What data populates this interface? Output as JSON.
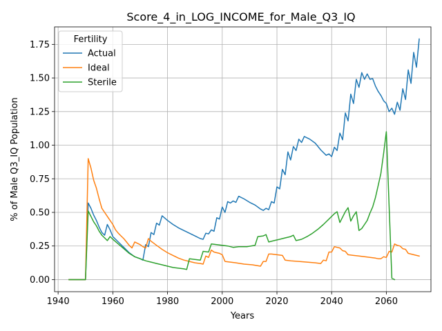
{
  "chart_data": {
    "type": "line",
    "title": "Score_4_in_LOG_INCOME_for_Male_Q3_IQ",
    "xlabel": "Years",
    "ylabel": "% of Male Q3_IQ Population",
    "xlim": [
      1938.7,
      2076.3
    ],
    "ylim": [
      -0.09,
      1.88
    ],
    "x_ticks": [
      1940,
      1960,
      1980,
      2000,
      2020,
      2040,
      2060
    ],
    "y_ticks": [
      0.0,
      0.25,
      0.5,
      0.75,
      1.0,
      1.25,
      1.5,
      1.75
    ],
    "y_tick_labels": [
      "0.00",
      "0.25",
      "0.50",
      "0.75",
      "1.00",
      "1.25",
      "1.50",
      "1.75"
    ],
    "grid": true,
    "legend": {
      "title": "Fertility",
      "position": "top-left"
    },
    "series": [
      {
        "name": "Actual",
        "color": "#1f77b4",
        "points": [
          [
            1944,
            0.0
          ],
          [
            1948,
            0.0
          ],
          [
            1950,
            0.0
          ],
          [
            1951,
            0.57
          ],
          [
            1952,
            0.53
          ],
          [
            1953,
            0.48
          ],
          [
            1954,
            0.44
          ],
          [
            1955,
            0.39
          ],
          [
            1956,
            0.35
          ],
          [
            1957,
            0.33
          ],
          [
            1958,
            0.41
          ],
          [
            1959,
            0.37
          ],
          [
            1960,
            0.32
          ],
          [
            1962,
            0.28
          ],
          [
            1964,
            0.24
          ],
          [
            1966,
            0.2
          ],
          [
            1968,
            0.17
          ],
          [
            1970,
            0.155
          ],
          [
            1971,
            0.145
          ],
          [
            1972,
            0.26
          ],
          [
            1973,
            0.245
          ],
          [
            1974,
            0.35
          ],
          [
            1975,
            0.335
          ],
          [
            1976,
            0.42
          ],
          [
            1977,
            0.405
          ],
          [
            1978,
            0.475
          ],
          [
            1980,
            0.44
          ],
          [
            1982,
            0.41
          ],
          [
            1984,
            0.385
          ],
          [
            1986,
            0.365
          ],
          [
            1988,
            0.345
          ],
          [
            1990,
            0.325
          ],
          [
            1992,
            0.305
          ],
          [
            1993,
            0.3
          ],
          [
            1994,
            0.345
          ],
          [
            1995,
            0.34
          ],
          [
            1996,
            0.37
          ],
          [
            1997,
            0.36
          ],
          [
            1998,
            0.46
          ],
          [
            1999,
            0.45
          ],
          [
            2000,
            0.54
          ],
          [
            2001,
            0.5
          ],
          [
            2002,
            0.58
          ],
          [
            2003,
            0.57
          ],
          [
            2004,
            0.585
          ],
          [
            2005,
            0.575
          ],
          [
            2006,
            0.62
          ],
          [
            2008,
            0.6
          ],
          [
            2010,
            0.575
          ],
          [
            2012,
            0.555
          ],
          [
            2014,
            0.525
          ],
          [
            2015,
            0.515
          ],
          [
            2016,
            0.53
          ],
          [
            2017,
            0.52
          ],
          [
            2018,
            0.58
          ],
          [
            2019,
            0.57
          ],
          [
            2020,
            0.69
          ],
          [
            2021,
            0.675
          ],
          [
            2022,
            0.82
          ],
          [
            2023,
            0.78
          ],
          [
            2024,
            0.95
          ],
          [
            2025,
            0.89
          ],
          [
            2026,
            0.99
          ],
          [
            2027,
            0.96
          ],
          [
            2028,
            1.045
          ],
          [
            2029,
            1.02
          ],
          [
            2030,
            1.065
          ],
          [
            2032,
            1.045
          ],
          [
            2034,
            1.015
          ],
          [
            2036,
            0.965
          ],
          [
            2038,
            0.925
          ],
          [
            2039,
            0.935
          ],
          [
            2040,
            0.915
          ],
          [
            2041,
            0.985
          ],
          [
            2042,
            0.96
          ],
          [
            2043,
            1.09
          ],
          [
            2044,
            1.04
          ],
          [
            2045,
            1.24
          ],
          [
            2046,
            1.18
          ],
          [
            2047,
            1.38
          ],
          [
            2048,
            1.31
          ],
          [
            2049,
            1.49
          ],
          [
            2050,
            1.43
          ],
          [
            2051,
            1.54
          ],
          [
            2052,
            1.49
          ],
          [
            2053,
            1.53
          ],
          [
            2054,
            1.49
          ],
          [
            2055,
            1.495
          ],
          [
            2056,
            1.44
          ],
          [
            2057,
            1.4
          ],
          [
            2058,
            1.37
          ],
          [
            2059,
            1.33
          ],
          [
            2060,
            1.31
          ],
          [
            2061,
            1.25
          ],
          [
            2062,
            1.275
          ],
          [
            2063,
            1.23
          ],
          [
            2064,
            1.32
          ],
          [
            2065,
            1.26
          ],
          [
            2066,
            1.42
          ],
          [
            2067,
            1.34
          ],
          [
            2068,
            1.56
          ],
          [
            2069,
            1.46
          ],
          [
            2070,
            1.69
          ],
          [
            2071,
            1.58
          ],
          [
            2072,
            1.79
          ]
        ]
      },
      {
        "name": "Ideal",
        "color": "#ff7f0e",
        "points": [
          [
            1944,
            0.0
          ],
          [
            1948,
            0.0
          ],
          [
            1950,
            0.0
          ],
          [
            1951,
            0.9
          ],
          [
            1952,
            0.83
          ],
          [
            1953,
            0.74
          ],
          [
            1954,
            0.68
          ],
          [
            1955,
            0.6
          ],
          [
            1956,
            0.53
          ],
          [
            1957,
            0.5
          ],
          [
            1958,
            0.47
          ],
          [
            1959,
            0.44
          ],
          [
            1960,
            0.41
          ],
          [
            1961,
            0.37
          ],
          [
            1962,
            0.345
          ],
          [
            1963,
            0.325
          ],
          [
            1964,
            0.305
          ],
          [
            1965,
            0.28
          ],
          [
            1966,
            0.255
          ],
          [
            1967,
            0.235
          ],
          [
            1968,
            0.28
          ],
          [
            1969,
            0.27
          ],
          [
            1970,
            0.26
          ],
          [
            1971,
            0.245
          ],
          [
            1972,
            0.235
          ],
          [
            1973,
            0.305
          ],
          [
            1974,
            0.285
          ],
          [
            1975,
            0.27
          ],
          [
            1976,
            0.255
          ],
          [
            1977,
            0.24
          ],
          [
            1978,
            0.225
          ],
          [
            1980,
            0.2
          ],
          [
            1982,
            0.18
          ],
          [
            1984,
            0.16
          ],
          [
            1986,
            0.145
          ],
          [
            1988,
            0.135
          ],
          [
            1990,
            0.125
          ],
          [
            1992,
            0.12
          ],
          [
            1993,
            0.115
          ],
          [
            1994,
            0.175
          ],
          [
            1995,
            0.165
          ],
          [
            1996,
            0.22
          ],
          [
            1997,
            0.205
          ],
          [
            1998,
            0.2
          ],
          [
            1999,
            0.195
          ],
          [
            2000,
            0.185
          ],
          [
            2001,
            0.135
          ],
          [
            2003,
            0.13
          ],
          [
            2005,
            0.125
          ],
          [
            2008,
            0.115
          ],
          [
            2011,
            0.11
          ],
          [
            2014,
            0.1
          ],
          [
            2015,
            0.135
          ],
          [
            2016,
            0.135
          ],
          [
            2017,
            0.19
          ],
          [
            2018,
            0.19
          ],
          [
            2020,
            0.185
          ],
          [
            2022,
            0.18
          ],
          [
            2023,
            0.145
          ],
          [
            2025,
            0.14
          ],
          [
            2028,
            0.135
          ],
          [
            2031,
            0.13
          ],
          [
            2034,
            0.125
          ],
          [
            2036,
            0.12
          ],
          [
            2037,
            0.145
          ],
          [
            2038,
            0.14
          ],
          [
            2039,
            0.205
          ],
          [
            2040,
            0.205
          ],
          [
            2041,
            0.245
          ],
          [
            2042,
            0.24
          ],
          [
            2043,
            0.235
          ],
          [
            2044,
            0.215
          ],
          [
            2045,
            0.21
          ],
          [
            2046,
            0.185
          ],
          [
            2048,
            0.18
          ],
          [
            2050,
            0.175
          ],
          [
            2052,
            0.17
          ],
          [
            2054,
            0.165
          ],
          [
            2056,
            0.16
          ],
          [
            2057,
            0.155
          ],
          [
            2058,
            0.155
          ],
          [
            2059,
            0.17
          ],
          [
            2060,
            0.165
          ],
          [
            2061,
            0.21
          ],
          [
            2062,
            0.205
          ],
          [
            2063,
            0.265
          ],
          [
            2064,
            0.255
          ],
          [
            2065,
            0.25
          ],
          [
            2066,
            0.23
          ],
          [
            2067,
            0.225
          ],
          [
            2068,
            0.195
          ],
          [
            2070,
            0.185
          ],
          [
            2072,
            0.175
          ]
        ]
      },
      {
        "name": "Sterile",
        "color": "#2ca02c",
        "points": [
          [
            1944,
            0.0
          ],
          [
            1948,
            0.0
          ],
          [
            1950,
            0.0
          ],
          [
            1951,
            0.51
          ],
          [
            1952,
            0.47
          ],
          [
            1953,
            0.43
          ],
          [
            1954,
            0.4
          ],
          [
            1955,
            0.36
          ],
          [
            1956,
            0.33
          ],
          [
            1957,
            0.31
          ],
          [
            1958,
            0.29
          ],
          [
            1959,
            0.32
          ],
          [
            1960,
            0.3
          ],
          [
            1962,
            0.265
          ],
          [
            1964,
            0.23
          ],
          [
            1966,
            0.195
          ],
          [
            1968,
            0.17
          ],
          [
            1970,
            0.155
          ],
          [
            1972,
            0.14
          ],
          [
            1974,
            0.13
          ],
          [
            1976,
            0.12
          ],
          [
            1978,
            0.11
          ],
          [
            1980,
            0.1
          ],
          [
            1982,
            0.09
          ],
          [
            1984,
            0.085
          ],
          [
            1986,
            0.08
          ],
          [
            1987,
            0.075
          ],
          [
            1988,
            0.155
          ],
          [
            1990,
            0.15
          ],
          [
            1992,
            0.145
          ],
          [
            1993,
            0.21
          ],
          [
            1995,
            0.205
          ],
          [
            1996,
            0.265
          ],
          [
            1998,
            0.26
          ],
          [
            2000,
            0.255
          ],
          [
            2002,
            0.25
          ],
          [
            2003,
            0.245
          ],
          [
            2004,
            0.24
          ],
          [
            2006,
            0.245
          ],
          [
            2009,
            0.245
          ],
          [
            2012,
            0.255
          ],
          [
            2013,
            0.32
          ],
          [
            2015,
            0.325
          ],
          [
            2016,
            0.335
          ],
          [
            2017,
            0.28
          ],
          [
            2019,
            0.29
          ],
          [
            2021,
            0.3
          ],
          [
            2023,
            0.31
          ],
          [
            2025,
            0.32
          ],
          [
            2026,
            0.33
          ],
          [
            2027,
            0.29
          ],
          [
            2029,
            0.3
          ],
          [
            2031,
            0.32
          ],
          [
            2033,
            0.345
          ],
          [
            2035,
            0.375
          ],
          [
            2037,
            0.41
          ],
          [
            2039,
            0.45
          ],
          [
            2041,
            0.49
          ],
          [
            2042,
            0.505
          ],
          [
            2043,
            0.425
          ],
          [
            2044,
            0.465
          ],
          [
            2045,
            0.505
          ],
          [
            2046,
            0.535
          ],
          [
            2047,
            0.435
          ],
          [
            2048,
            0.475
          ],
          [
            2049,
            0.505
          ],
          [
            2050,
            0.365
          ],
          [
            2051,
            0.38
          ],
          [
            2052,
            0.41
          ],
          [
            2053,
            0.44
          ],
          [
            2054,
            0.495
          ],
          [
            2055,
            0.54
          ],
          [
            2056,
            0.61
          ],
          [
            2057,
            0.7
          ],
          [
            2058,
            0.79
          ],
          [
            2059,
            0.94
          ],
          [
            2060,
            1.1
          ],
          [
            2061,
            0.55
          ],
          [
            2062,
            0.01
          ],
          [
            2063,
            0.0
          ]
        ]
      }
    ]
  }
}
